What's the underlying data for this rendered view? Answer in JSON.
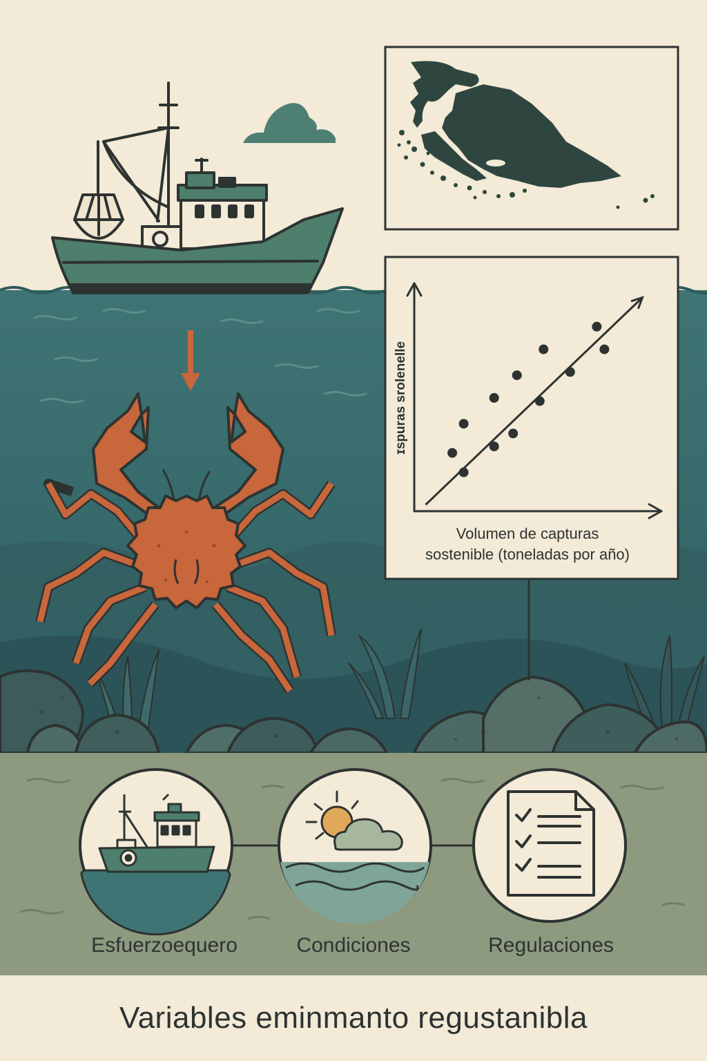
{
  "chart": {
    "y_label": "ɪspuras srolenelle",
    "x_label_line1": "Volumen de capturas",
    "x_label_line2": "sostenible (toneladas por año)"
  },
  "chart_data": {
    "type": "scatter",
    "title": "",
    "xlabel": "Volumen de capturas sostenible (toneladas por año)",
    "ylabel": "ɪspuras srolenelle",
    "trend": "increasing",
    "x_ticks_shown": false,
    "y_ticks_shown": false,
    "points": [
      {
        "x": 1.0,
        "y": 1.8
      },
      {
        "x": 1.3,
        "y": 1.2
      },
      {
        "x": 1.3,
        "y": 2.7
      },
      {
        "x": 2.1,
        "y": 3.5
      },
      {
        "x": 2.1,
        "y": 2.0
      },
      {
        "x": 2.6,
        "y": 2.4
      },
      {
        "x": 2.7,
        "y": 4.2
      },
      {
        "x": 3.3,
        "y": 3.4
      },
      {
        "x": 3.4,
        "y": 5.0
      },
      {
        "x": 4.1,
        "y": 4.3
      },
      {
        "x": 4.8,
        "y": 5.7
      },
      {
        "x": 5.0,
        "y": 5.0
      }
    ],
    "trendline": {
      "x": [
        0.3,
        6.0
      ],
      "y": [
        0.2,
        6.6
      ]
    },
    "xlim": [
      0,
      6.5
    ],
    "ylim": [
      0,
      7
    ]
  },
  "factors": [
    {
      "label": "Esfuerzoequero",
      "icon": "fishing-boat-icon"
    },
    {
      "label": "Condiciones",
      "icon": "sun-cloud-waves-icon"
    },
    {
      "label": "Regulaciones",
      "icon": "checklist-document-icon"
    }
  ],
  "title": "Variables eminmanto regustanibla",
  "colors": {
    "background": "#f3ead7",
    "sea": "#3f7474",
    "seafloor": "#8d9a80",
    "boat_hull": "#4d7f6c",
    "crab": "#c8663c",
    "ink": "#2d3331",
    "map_land": "#2f4640"
  }
}
